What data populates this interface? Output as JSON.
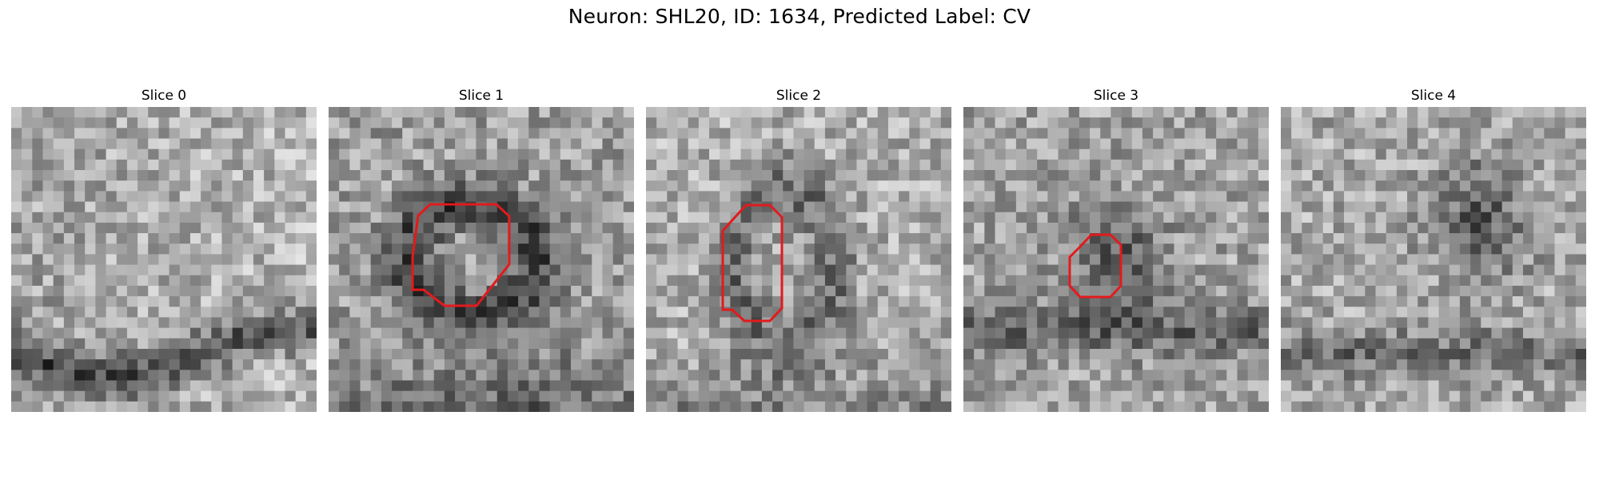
{
  "figure": {
    "title": "Neuron: SHL20, ID: 1634, Predicted Label: CV",
    "overlay_color": "#e31a1c",
    "colormap": "gray"
  },
  "panels": [
    {
      "title": "Slice 0",
      "has_contour": false,
      "pattern": "band-lower"
    },
    {
      "title": "Slice 1",
      "has_contour": true,
      "pattern": "ring-dark"
    },
    {
      "title": "Slice 2",
      "has_contour": true,
      "pattern": "ring-soft"
    },
    {
      "title": "Slice 3",
      "has_contour": true,
      "pattern": "blob-dark"
    },
    {
      "title": "Slice 4",
      "has_contour": false,
      "pattern": "upper-right-dark"
    }
  ]
}
